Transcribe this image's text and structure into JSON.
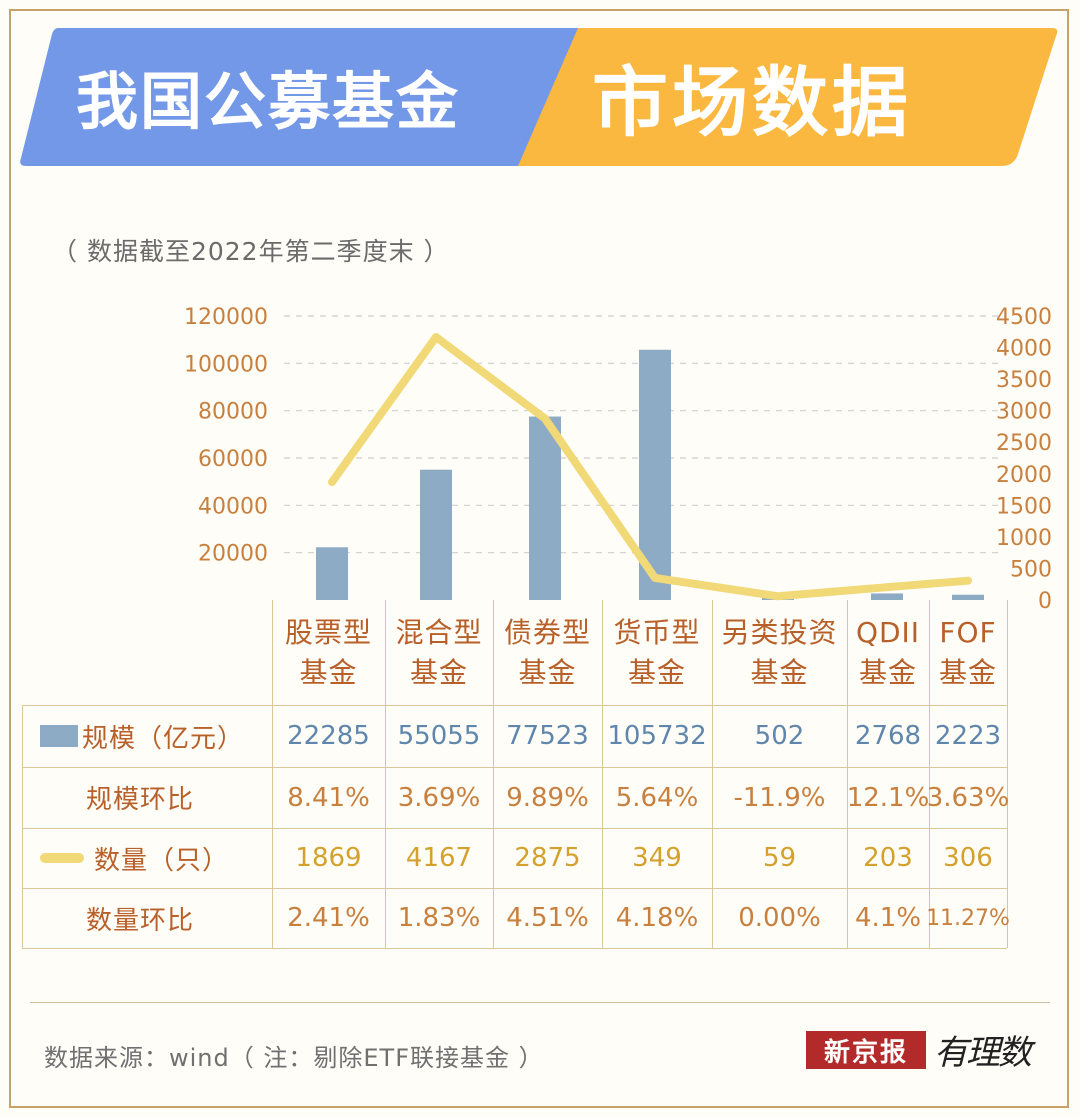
{
  "header": {
    "title_left": "我国公募基金",
    "title_right": "市场数据",
    "left_color": "#7498e8",
    "right_color": "#fbb840"
  },
  "subtitle": "（ 数据截至2022年第二季度末 ）",
  "chart_data": {
    "type": "bar",
    "categories": [
      "股票型基金",
      "混合型基金",
      "债券型基金",
      "货币型基金",
      "另类投资基金",
      "QDII基金",
      "FOF基金"
    ],
    "series": [
      {
        "name": "规模（亿元）",
        "type": "bar",
        "axis": "left",
        "color": "#8eabc6",
        "values": [
          22285,
          55055,
          77523,
          105732,
          502,
          2768,
          2223
        ]
      },
      {
        "name": "数量（只）",
        "type": "line",
        "axis": "right",
        "color": "#f2d978",
        "values": [
          1869,
          4167,
          2875,
          349,
          59,
          203,
          306
        ]
      }
    ],
    "y_left": {
      "range": [
        0,
        120000
      ],
      "ticks": [
        "120000",
        "100000",
        "80000",
        "60000",
        "40000",
        "20000"
      ]
    },
    "y_right": {
      "range": [
        0,
        4500
      ],
      "ticks": [
        "4500",
        "4000",
        "3500",
        "3000",
        "2500",
        "2000",
        "1500",
        "1000",
        "500",
        "0"
      ]
    },
    "grid": "dashed horizontal"
  },
  "table": {
    "headers": [
      [
        "股票型",
        "基金"
      ],
      [
        "混合型",
        "基金"
      ],
      [
        "债券型",
        "基金"
      ],
      [
        "货币型",
        "基金"
      ],
      [
        "另类投资",
        "基金"
      ],
      [
        "QDII",
        "基金"
      ],
      [
        "FOF",
        "基金"
      ]
    ],
    "rows": [
      {
        "label": "规模（亿元）",
        "legend": "bar",
        "style": "blue",
        "values": [
          "22285",
          "55055",
          "77523",
          "105732",
          "502",
          "2768",
          "2223"
        ]
      },
      {
        "label": "规模环比",
        "legend": "none",
        "style": "orange",
        "values": [
          "8.41%",
          "3.69%",
          "9.89%",
          "5.64%",
          "-11.9%",
          "12.1%",
          "3.63%"
        ]
      },
      {
        "label": "数量（只）",
        "legend": "line",
        "style": "gold",
        "values": [
          "1869",
          "4167",
          "2875",
          "349",
          "59",
          "203",
          "306"
        ]
      },
      {
        "label": "数量环比",
        "legend": "none",
        "style": "orange",
        "values": [
          "2.41%",
          "1.83%",
          "4.51%",
          "4.18%",
          "0.00%",
          "4.1%",
          "11.27%"
        ]
      }
    ]
  },
  "footer": {
    "source": "数据来源：wind（ 注：剔除ETF联接基金 ）",
    "logo_text": "新京报",
    "logo_script": "有理数"
  }
}
